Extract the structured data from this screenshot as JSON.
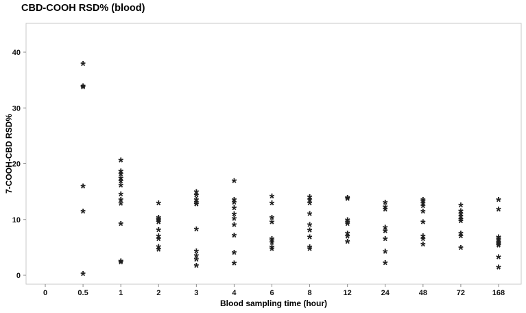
{
  "title": "CBD-COOH RSD% (blood)",
  "colors": {
    "marker": "#1f1f1f",
    "axis_border": "#c9c9c9",
    "tick": "#8a8a8a",
    "text": "#111111"
  },
  "chart_data": {
    "type": "scatter",
    "title": "CBD-COOH RSD% (blood)",
    "xlabel": "Blood sampling time (hour)",
    "ylabel": "7-COOH-CBD RSD%",
    "categories": [
      "0",
      "0.5",
      "1",
      "2",
      "3",
      "4",
      "6",
      "8",
      "12",
      "24",
      "48",
      "72",
      "168"
    ],
    "yticks": [
      0,
      10,
      20,
      30,
      40
    ],
    "ylim": [
      0,
      45
    ],
    "marker": "*",
    "grid": false,
    "legend": "none",
    "values_by_category": [
      [],
      [
        38,
        34,
        33.8,
        16,
        11.5,
        0.3
      ],
      [
        20.7,
        18.7,
        18.2,
        17.5,
        16.9,
        16.2,
        14.6,
        13.6,
        12.9,
        9.3,
        2.6,
        2.4
      ],
      [
        13,
        10.4,
        10.1,
        9.9,
        9.6,
        8.2,
        7.1,
        6.6,
        5.2,
        4.7
      ],
      [
        15,
        14.4,
        13.6,
        13.1,
        12.8,
        8.3,
        4.4,
        3.6,
        2.9,
        1.8
      ],
      [
        17,
        13.6,
        13.1,
        12.1,
        11,
        10.2,
        9.1,
        7.2,
        4.1,
        2.2
      ],
      [
        14.2,
        13,
        10.4,
        9.6,
        6.6,
        6.3,
        5.9,
        5.1,
        4.8
      ],
      [
        14.1,
        13.6,
        13,
        11.1,
        9.1,
        8.1,
        6.9,
        5.1,
        4.8
      ],
      [
        14,
        13.8,
        10,
        9.6,
        9.3,
        7.6,
        7,
        6.1
      ],
      [
        13.1,
        12.3,
        11.9,
        8.6,
        8,
        6.6,
        4.3,
        2.3
      ],
      [
        13.6,
        13.3,
        12.9,
        12.5,
        11.5,
        9.6,
        7.1,
        6.6,
        5.6
      ],
      [
        12.6,
        11.6,
        11.1,
        10.6,
        10.1,
        9.8,
        7.6,
        7.1,
        5
      ],
      [
        13.6,
        11.9,
        6.9,
        6.6,
        6.3,
        6,
        5.7,
        5.4,
        3.3,
        1.5
      ]
    ]
  }
}
